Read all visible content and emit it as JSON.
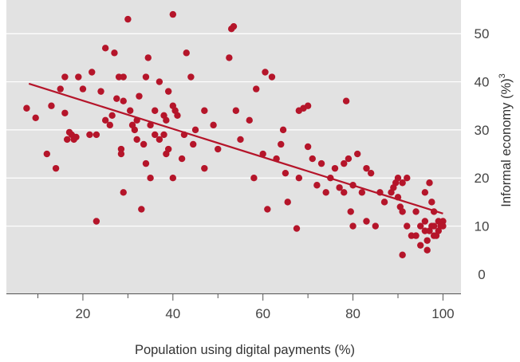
{
  "chart_data": {
    "type": "scatter",
    "xlabel": "Population using digital payments (%)",
    "ylabel": "Informal economy (%)",
    "ylabel_superscript": "3",
    "x_ticks": [
      20,
      40,
      60,
      80,
      100
    ],
    "y_ticks": [
      0,
      10,
      20,
      30,
      40,
      50
    ],
    "xlim": [
      3,
      104
    ],
    "ylim": [
      -4,
      57
    ],
    "grid": true,
    "legend": "none",
    "colors": {
      "background": "#e2e2e2",
      "grid": "#ffffff",
      "points": "#b5152a",
      "trend": "#b5152a",
      "axis": "#555555"
    },
    "trendline": {
      "x": [
        8,
        100
      ],
      "y": [
        39.6,
        12.6
      ]
    },
    "points": [
      [
        7.5,
        34.5
      ],
      [
        9.5,
        32.5
      ],
      [
        12,
        25
      ],
      [
        13,
        35
      ],
      [
        14,
        22
      ],
      [
        15,
        38.5
      ],
      [
        16,
        33.5
      ],
      [
        16,
        41
      ],
      [
        16.5,
        28
      ],
      [
        17,
        29.5
      ],
      [
        17.5,
        29
      ],
      [
        18,
        28
      ],
      [
        18.5,
        28.5
      ],
      [
        19,
        41
      ],
      [
        20,
        38.5
      ],
      [
        21.5,
        29
      ],
      [
        22,
        42
      ],
      [
        23,
        11
      ],
      [
        23,
        29
      ],
      [
        24,
        38
      ],
      [
        25,
        47
      ],
      [
        25,
        32
      ],
      [
        26,
        31
      ],
      [
        26.5,
        33
      ],
      [
        27,
        46
      ],
      [
        27.5,
        36.5
      ],
      [
        28,
        41
      ],
      [
        28.5,
        26
      ],
      [
        28.5,
        25
      ],
      [
        29,
        41
      ],
      [
        29,
        17
      ],
      [
        29,
        36
      ],
      [
        30,
        53
      ],
      [
        30.5,
        34
      ],
      [
        31,
        31
      ],
      [
        31.5,
        30
      ],
      [
        32,
        28
      ],
      [
        32,
        32
      ],
      [
        32.5,
        37
      ],
      [
        33,
        13.5
      ],
      [
        33.5,
        27
      ],
      [
        34,
        41
      ],
      [
        34,
        23
      ],
      [
        34.5,
        45
      ],
      [
        35,
        31
      ],
      [
        35,
        20
      ],
      [
        36,
        34
      ],
      [
        36,
        29
      ],
      [
        37,
        28
      ],
      [
        37,
        40
      ],
      [
        38,
        33
      ],
      [
        38,
        29
      ],
      [
        38.5,
        25
      ],
      [
        38.5,
        32
      ],
      [
        39,
        38
      ],
      [
        39,
        26
      ],
      [
        40,
        54
      ],
      [
        40,
        35
      ],
      [
        40,
        20
      ],
      [
        40.5,
        34
      ],
      [
        41,
        33
      ],
      [
        42,
        24
      ],
      [
        42.5,
        29
      ],
      [
        43,
        46
      ],
      [
        44,
        41
      ],
      [
        44.5,
        27
      ],
      [
        45,
        30
      ],
      [
        47,
        34
      ],
      [
        47,
        22
      ],
      [
        49,
        31
      ],
      [
        50,
        26
      ],
      [
        52.5,
        45
      ],
      [
        53,
        51
      ],
      [
        53.5,
        51.5
      ],
      [
        54,
        34
      ],
      [
        55,
        28
      ],
      [
        57,
        32
      ],
      [
        58,
        20
      ],
      [
        58.5,
        38.5
      ],
      [
        60,
        25
      ],
      [
        60.5,
        42
      ],
      [
        61,
        13.5
      ],
      [
        62,
        41
      ],
      [
        63,
        24
      ],
      [
        64,
        27
      ],
      [
        64.5,
        30
      ],
      [
        65,
        21
      ],
      [
        65.5,
        15
      ],
      [
        67.5,
        9.5
      ],
      [
        68,
        20
      ],
      [
        68,
        34
      ],
      [
        69,
        34.5
      ],
      [
        70,
        35
      ],
      [
        70,
        26.5
      ],
      [
        71,
        24
      ],
      [
        72,
        18.5
      ],
      [
        73,
        23
      ],
      [
        74,
        17
      ],
      [
        75,
        20
      ],
      [
        76,
        22
      ],
      [
        77,
        18
      ],
      [
        78,
        17
      ],
      [
        78,
        23
      ],
      [
        78.5,
        36
      ],
      [
        79,
        24
      ],
      [
        79.5,
        13
      ],
      [
        80,
        10
      ],
      [
        80,
        18.5
      ],
      [
        81,
        25
      ],
      [
        82,
        17
      ],
      [
        83,
        22
      ],
      [
        83,
        11
      ],
      [
        84,
        21
      ],
      [
        85,
        10
      ],
      [
        86,
        17
      ],
      [
        87,
        15
      ],
      [
        88.5,
        17
      ],
      [
        89,
        18
      ],
      [
        89.5,
        19
      ],
      [
        90,
        20
      ],
      [
        90,
        16
      ],
      [
        90.5,
        14
      ],
      [
        91,
        19
      ],
      [
        91,
        13
      ],
      [
        91,
        4
      ],
      [
        92,
        10
      ],
      [
        92,
        20
      ],
      [
        93,
        8
      ],
      [
        94,
        13
      ],
      [
        94,
        8
      ],
      [
        95,
        6
      ],
      [
        95,
        10
      ],
      [
        96,
        9
      ],
      [
        96,
        17
      ],
      [
        96,
        11
      ],
      [
        96.5,
        7
      ],
      [
        96.5,
        5
      ],
      [
        97,
        9
      ],
      [
        97,
        19
      ],
      [
        97.5,
        15
      ],
      [
        97.5,
        10
      ],
      [
        98,
        10
      ],
      [
        98,
        8
      ],
      [
        98,
        13
      ],
      [
        98.5,
        8
      ],
      [
        99,
        11
      ],
      [
        99,
        9
      ],
      [
        99.5,
        10
      ],
      [
        100,
        11
      ],
      [
        100,
        10
      ]
    ]
  }
}
